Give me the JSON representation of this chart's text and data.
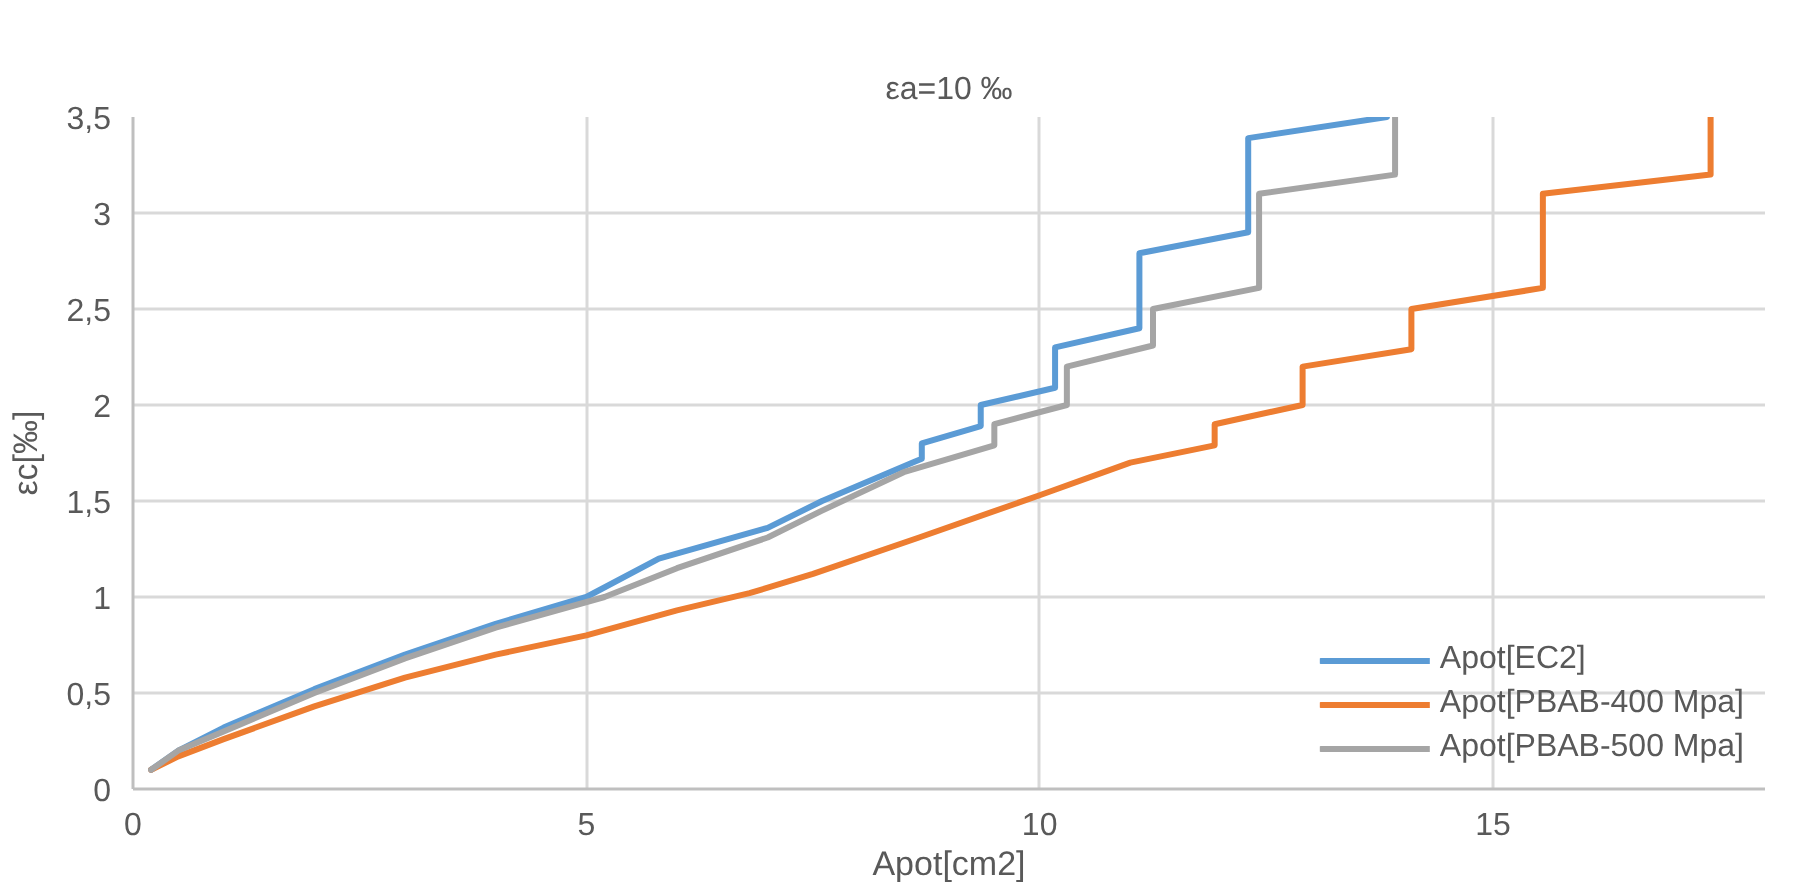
{
  "chart_data": {
    "type": "line",
    "title": "εa=10 ‰",
    "xlabel": "Apot[cm2]",
    "ylabel": "εc[‰]",
    "xlim": [
      0,
      18
    ],
    "xticks": [
      0,
      5,
      10,
      15
    ],
    "ylim": [
      0,
      3.5
    ],
    "yticks": [
      0,
      {
        "value": 0.5,
        "label": "0,5"
      },
      1,
      {
        "value": 1.5,
        "label": "1,5"
      },
      2,
      {
        "value": 2.5,
        "label": "2,5"
      },
      3,
      {
        "value": 3.5,
        "label": "3,5"
      }
    ],
    "grid": true,
    "legend": "bottom right",
    "marker": "none",
    "line_style": "solid",
    "series": [
      {
        "name": "Apot[EC2]",
        "color": "#5b9bd5",
        "x": [
          0.2,
          0.5,
          1,
          2,
          3,
          4,
          5,
          5.8,
          7,
          7.6,
          8.6,
          8.7,
          8.7,
          9.35,
          9.35,
          10.17,
          10.17,
          11.1,
          11.1,
          12.3,
          12.3,
          13.83
        ],
        "values": [
          0.1,
          0.2,
          0.32,
          0.52,
          0.7,
          0.86,
          1.0,
          1.2,
          1.36,
          1.5,
          1.7,
          1.72,
          1.8,
          1.89,
          2.0,
          2.09,
          2.3,
          2.4,
          2.79,
          2.9,
          3.39,
          3.5
        ]
      },
      {
        "name": "Apot[PBAB-400 Mpa]",
        "color": "#ed7d31",
        "x": [
          0.2,
          0.5,
          1,
          2,
          3,
          4,
          5,
          6,
          6.8,
          7.5,
          8.67,
          10,
          11,
          11.93,
          11.93,
          12.9,
          12.9,
          14.1,
          14.1,
          15.55,
          15.55,
          17.4,
          17.4
        ],
        "values": [
          0.1,
          0.17,
          0.26,
          0.43,
          0.58,
          0.7,
          0.8,
          0.93,
          1.02,
          1.12,
          1.31,
          1.53,
          1.7,
          1.79,
          1.9,
          2.0,
          2.2,
          2.29,
          2.5,
          2.61,
          3.1,
          3.2,
          3.5
        ]
      },
      {
        "name": "Apot[PBAB-500 Mpa]",
        "color": "#a5a5a5",
        "x": [
          0.2,
          0.5,
          1,
          2,
          3,
          4,
          5.2,
          6,
          7.0,
          7.6,
          8.5,
          9.5,
          9.5,
          10.3,
          10.3,
          11.25,
          11.25,
          12.42,
          12.42,
          13.92,
          13.92
        ],
        "values": [
          0.1,
          0.2,
          0.3,
          0.5,
          0.68,
          0.84,
          1.0,
          1.15,
          1.31,
          1.45,
          1.65,
          1.79,
          1.9,
          2.0,
          2.2,
          2.31,
          2.5,
          2.61,
          3.1,
          3.2,
          3.5
        ]
      }
    ]
  }
}
